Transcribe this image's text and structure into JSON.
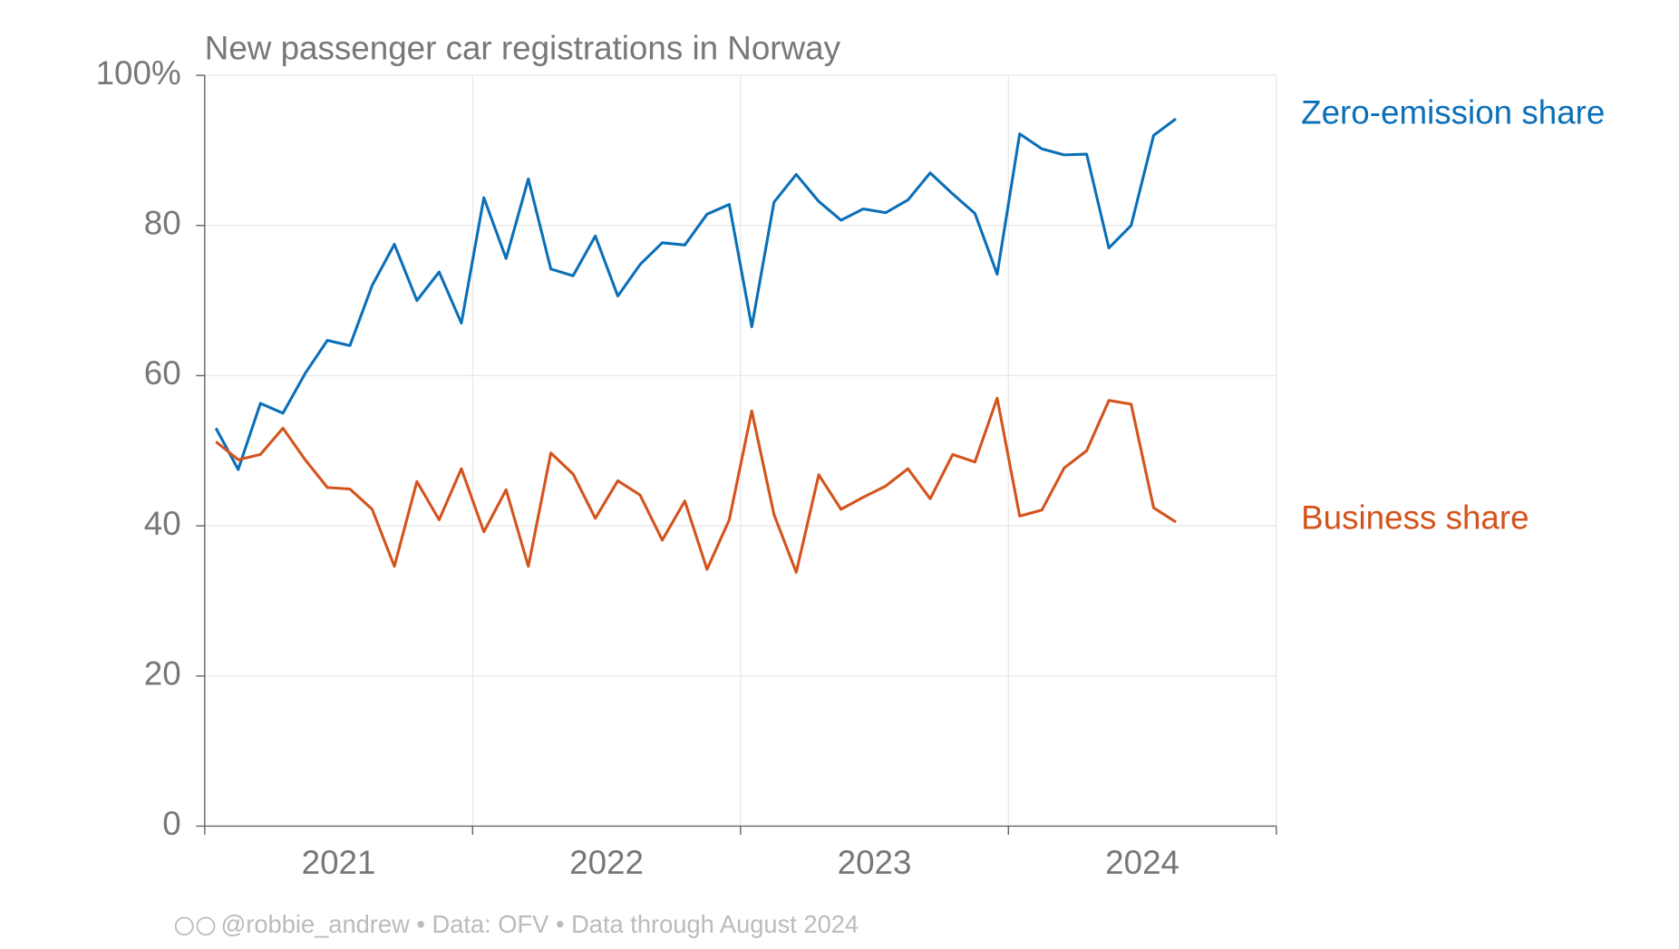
{
  "chart_data": {
    "type": "line",
    "title": "New passenger car registrations in Norway",
    "x": [
      2021.042,
      2021.125,
      2021.208,
      2021.292,
      2021.375,
      2021.458,
      2021.542,
      2021.625,
      2021.708,
      2021.792,
      2021.875,
      2021.958,
      2022.042,
      2022.125,
      2022.208,
      2022.292,
      2022.375,
      2022.458,
      2022.542,
      2022.625,
      2022.708,
      2022.792,
      2022.875,
      2022.958,
      2023.042,
      2023.125,
      2023.208,
      2023.292,
      2023.375,
      2023.458,
      2023.542,
      2023.625,
      2023.708,
      2023.792,
      2023.875,
      2023.958,
      2024.042,
      2024.125,
      2024.208,
      2024.292,
      2024.375,
      2024.458,
      2024.542,
      2024.625
    ],
    "series": [
      {
        "name": "Zero-emission share",
        "color": "#0b6fb8",
        "values": [
          53,
          47.5,
          56.3,
          55,
          60.3,
          64.7,
          64,
          72,
          77.5,
          70,
          73.8,
          67,
          83.7,
          75.6,
          86.2,
          74.2,
          73.3,
          78.6,
          70.6,
          74.8,
          77.7,
          77.4,
          81.5,
          82.8,
          66.5,
          83.1,
          86.8,
          83.2,
          80.7,
          82.2,
          81.7,
          83.4,
          87,
          84.2,
          81.6,
          73.5,
          92.2,
          90.2,
          89.4,
          89.5,
          77,
          80,
          92,
          94.2
        ]
      },
      {
        "name": "Business share",
        "color": "#d4531c",
        "values": [
          51.2,
          48.8,
          49.5,
          53,
          48.8,
          45.1,
          44.9,
          42.2,
          34.6,
          45.9,
          40.8,
          47.6,
          39.2,
          44.8,
          34.6,
          49.7,
          46.9,
          41,
          46,
          44.1,
          38.1,
          43.3,
          34.2,
          40.8,
          55.3,
          41.5,
          33.8,
          46.8,
          42.2,
          43.8,
          45.3,
          47.6,
          43.6,
          49.5,
          48.5,
          57,
          41.3,
          42.1,
          47.7,
          50,
          56.7,
          56.2,
          42.4,
          40.5
        ]
      }
    ],
    "xlim": [
      2021,
      2025
    ],
    "xticks": [
      2021,
      2022,
      2023,
      2024,
      2025
    ],
    "year_labels": [
      "2021",
      "2022",
      "2023",
      "2024"
    ],
    "ylim": [
      0,
      100
    ],
    "yticks": [
      0,
      20,
      40,
      60,
      80,
      {
        "value": 100,
        "label": "100%"
      }
    ],
    "grid": true,
    "footer": [
      "@robbie_andrew",
      "Data: OFV",
      "Data through August 2024"
    ]
  }
}
